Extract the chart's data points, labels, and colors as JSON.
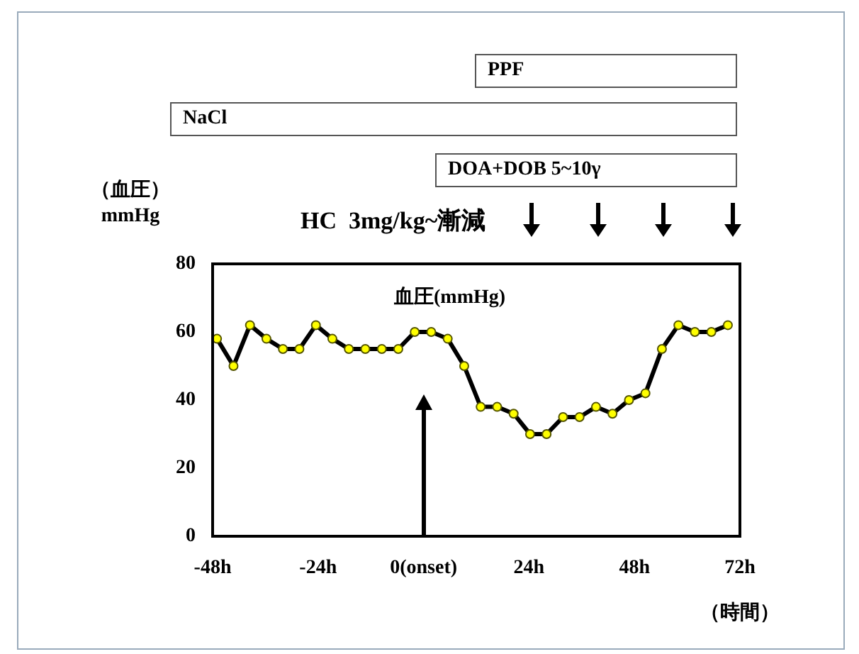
{
  "chart_data": {
    "type": "line",
    "x": [
      -47,
      -43.25,
      -39.5,
      -35.75,
      -32,
      -28.25,
      -24.5,
      -20.75,
      -17,
      -13.25,
      -9.5,
      -5.75,
      -2,
      1.75,
      5.5,
      9.25,
      13,
      16.75,
      20.5,
      24.25,
      28,
      31.75,
      35.5,
      39.25,
      43,
      46.75,
      50.5,
      54.25,
      58,
      61.75,
      65.5,
      69.25
    ],
    "series": [
      {
        "name": "血圧(mmHg)",
        "color": "#000000",
        "values": [
          58,
          50,
          62,
          58,
          55,
          55,
          62,
          58,
          55,
          55,
          55,
          55,
          60,
          60,
          58,
          50,
          38,
          38,
          36,
          30,
          30,
          35,
          35,
          38,
          36,
          40,
          42,
          55,
          62,
          60,
          60,
          62
        ]
      }
    ],
    "xlim": [
      -48,
      72
    ],
    "xticks": [
      {
        "value": -48,
        "label": "-48h"
      },
      {
        "value": -24,
        "label": "-24h"
      },
      {
        "value": 0,
        "label": "0(onset)"
      },
      {
        "value": 24,
        "label": "24h"
      },
      {
        "value": 48,
        "label": "48h"
      },
      {
        "value": 72,
        "label": "72h"
      }
    ],
    "ylim": [
      0,
      80
    ],
    "yticks": [
      0,
      20,
      40,
      60,
      80
    ],
    "ylabel": "（血圧）\nmmHg",
    "xlabel": "（時間）",
    "annotations": [
      "PPF",
      "NaCl",
      "DOA+DOB 5~10γ",
      "HC  3mg/kg~漸減"
    ],
    "marker": "circle",
    "line_style": "solid",
    "grid": false,
    "legend": false
  }
}
